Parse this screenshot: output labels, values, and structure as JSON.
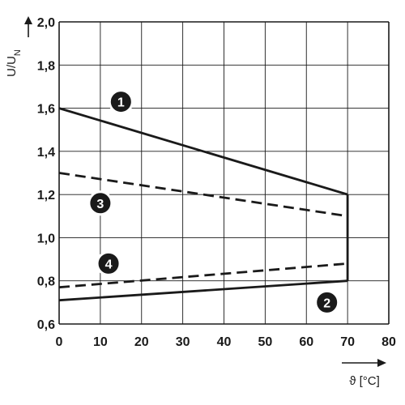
{
  "chart_data": {
    "type": "line",
    "xlabel": "ϑ [°C]",
    "ylabel": "U/U",
    "ylabel_subscript": "N",
    "xlim": [
      0,
      80
    ],
    "ylim": [
      0.6,
      2.0
    ],
    "x_ticks": [
      0,
      10,
      20,
      30,
      40,
      50,
      60,
      70,
      80
    ],
    "x_tick_labels": [
      "0",
      "10",
      "20",
      "30",
      "40",
      "50",
      "60",
      "70",
      "80"
    ],
    "y_ticks": [
      0.6,
      0.8,
      1.0,
      1.2,
      1.4,
      1.6,
      1.8,
      2.0
    ],
    "y_tick_labels": [
      "0,6",
      "0,8",
      "1,0",
      "1,2",
      "1,4",
      "1,6",
      "1,8",
      "2,0"
    ],
    "grid": true,
    "series": [
      {
        "id": "1",
        "label": "1",
        "style": "solid",
        "x": [
          0,
          70
        ],
        "y": [
          1.6,
          1.2
        ],
        "label_at": [
          15,
          1.63
        ]
      },
      {
        "id": "2",
        "label": "2",
        "style": "solid",
        "x": [
          0,
          70
        ],
        "y": [
          0.71,
          0.8
        ],
        "label_at": [
          65,
          0.7
        ]
      },
      {
        "id": "3",
        "label": "3",
        "style": "dashed",
        "x": [
          0,
          70
        ],
        "y": [
          1.3,
          1.1
        ],
        "label_at": [
          10,
          1.16
        ]
      },
      {
        "id": "4",
        "label": "4",
        "style": "dashed",
        "x": [
          0,
          70
        ],
        "y": [
          0.77,
          0.88
        ],
        "label_at": [
          12,
          0.88
        ]
      }
    ],
    "connectors": [
      {
        "style": "solid",
        "x": [
          70,
          70
        ],
        "y": [
          0.8,
          1.2
        ]
      }
    ],
    "colors": {
      "line": "#1a1a1a",
      "grid": "#1a1a1a",
      "badge": "#1a1a1a"
    }
  }
}
